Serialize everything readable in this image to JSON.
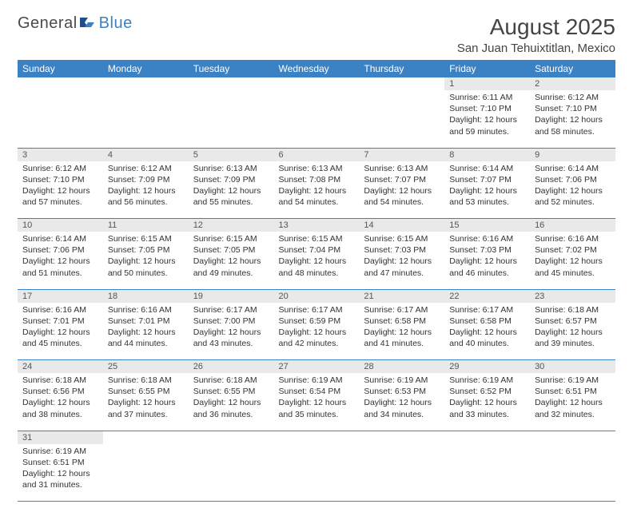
{
  "logo": {
    "general": "General",
    "blue": "Blue"
  },
  "title": {
    "month": "August 2025",
    "location": "San Juan Tehuixtitlan, Mexico"
  },
  "colors": {
    "accent": "#3b82c4",
    "daynum_bg": "#e9e9e9",
    "text": "#333333",
    "bg": "#ffffff"
  },
  "dayHeaders": [
    "Sunday",
    "Monday",
    "Tuesday",
    "Wednesday",
    "Thursday",
    "Friday",
    "Saturday"
  ],
  "weeks": [
    [
      null,
      null,
      null,
      null,
      null,
      {
        "n": "1",
        "sunrise": "Sunrise: 6:11 AM",
        "sunset": "Sunset: 7:10 PM",
        "daylight": "Daylight: 12 hours and 59 minutes."
      },
      {
        "n": "2",
        "sunrise": "Sunrise: 6:12 AM",
        "sunset": "Sunset: 7:10 PM",
        "daylight": "Daylight: 12 hours and 58 minutes."
      }
    ],
    [
      {
        "n": "3",
        "sunrise": "Sunrise: 6:12 AM",
        "sunset": "Sunset: 7:10 PM",
        "daylight": "Daylight: 12 hours and 57 minutes."
      },
      {
        "n": "4",
        "sunrise": "Sunrise: 6:12 AM",
        "sunset": "Sunset: 7:09 PM",
        "daylight": "Daylight: 12 hours and 56 minutes."
      },
      {
        "n": "5",
        "sunrise": "Sunrise: 6:13 AM",
        "sunset": "Sunset: 7:09 PM",
        "daylight": "Daylight: 12 hours and 55 minutes."
      },
      {
        "n": "6",
        "sunrise": "Sunrise: 6:13 AM",
        "sunset": "Sunset: 7:08 PM",
        "daylight": "Daylight: 12 hours and 54 minutes."
      },
      {
        "n": "7",
        "sunrise": "Sunrise: 6:13 AM",
        "sunset": "Sunset: 7:07 PM",
        "daylight": "Daylight: 12 hours and 54 minutes."
      },
      {
        "n": "8",
        "sunrise": "Sunrise: 6:14 AM",
        "sunset": "Sunset: 7:07 PM",
        "daylight": "Daylight: 12 hours and 53 minutes."
      },
      {
        "n": "9",
        "sunrise": "Sunrise: 6:14 AM",
        "sunset": "Sunset: 7:06 PM",
        "daylight": "Daylight: 12 hours and 52 minutes."
      }
    ],
    [
      {
        "n": "10",
        "sunrise": "Sunrise: 6:14 AM",
        "sunset": "Sunset: 7:06 PM",
        "daylight": "Daylight: 12 hours and 51 minutes."
      },
      {
        "n": "11",
        "sunrise": "Sunrise: 6:15 AM",
        "sunset": "Sunset: 7:05 PM",
        "daylight": "Daylight: 12 hours and 50 minutes."
      },
      {
        "n": "12",
        "sunrise": "Sunrise: 6:15 AM",
        "sunset": "Sunset: 7:05 PM",
        "daylight": "Daylight: 12 hours and 49 minutes."
      },
      {
        "n": "13",
        "sunrise": "Sunrise: 6:15 AM",
        "sunset": "Sunset: 7:04 PM",
        "daylight": "Daylight: 12 hours and 48 minutes."
      },
      {
        "n": "14",
        "sunrise": "Sunrise: 6:15 AM",
        "sunset": "Sunset: 7:03 PM",
        "daylight": "Daylight: 12 hours and 47 minutes."
      },
      {
        "n": "15",
        "sunrise": "Sunrise: 6:16 AM",
        "sunset": "Sunset: 7:03 PM",
        "daylight": "Daylight: 12 hours and 46 minutes."
      },
      {
        "n": "16",
        "sunrise": "Sunrise: 6:16 AM",
        "sunset": "Sunset: 7:02 PM",
        "daylight": "Daylight: 12 hours and 45 minutes."
      }
    ],
    [
      {
        "n": "17",
        "sunrise": "Sunrise: 6:16 AM",
        "sunset": "Sunset: 7:01 PM",
        "daylight": "Daylight: 12 hours and 45 minutes."
      },
      {
        "n": "18",
        "sunrise": "Sunrise: 6:16 AM",
        "sunset": "Sunset: 7:01 PM",
        "daylight": "Daylight: 12 hours and 44 minutes."
      },
      {
        "n": "19",
        "sunrise": "Sunrise: 6:17 AM",
        "sunset": "Sunset: 7:00 PM",
        "daylight": "Daylight: 12 hours and 43 minutes."
      },
      {
        "n": "20",
        "sunrise": "Sunrise: 6:17 AM",
        "sunset": "Sunset: 6:59 PM",
        "daylight": "Daylight: 12 hours and 42 minutes."
      },
      {
        "n": "21",
        "sunrise": "Sunrise: 6:17 AM",
        "sunset": "Sunset: 6:58 PM",
        "daylight": "Daylight: 12 hours and 41 minutes."
      },
      {
        "n": "22",
        "sunrise": "Sunrise: 6:17 AM",
        "sunset": "Sunset: 6:58 PM",
        "daylight": "Daylight: 12 hours and 40 minutes."
      },
      {
        "n": "23",
        "sunrise": "Sunrise: 6:18 AM",
        "sunset": "Sunset: 6:57 PM",
        "daylight": "Daylight: 12 hours and 39 minutes."
      }
    ],
    [
      {
        "n": "24",
        "sunrise": "Sunrise: 6:18 AM",
        "sunset": "Sunset: 6:56 PM",
        "daylight": "Daylight: 12 hours and 38 minutes."
      },
      {
        "n": "25",
        "sunrise": "Sunrise: 6:18 AM",
        "sunset": "Sunset: 6:55 PM",
        "daylight": "Daylight: 12 hours and 37 minutes."
      },
      {
        "n": "26",
        "sunrise": "Sunrise: 6:18 AM",
        "sunset": "Sunset: 6:55 PM",
        "daylight": "Daylight: 12 hours and 36 minutes."
      },
      {
        "n": "27",
        "sunrise": "Sunrise: 6:19 AM",
        "sunset": "Sunset: 6:54 PM",
        "daylight": "Daylight: 12 hours and 35 minutes."
      },
      {
        "n": "28",
        "sunrise": "Sunrise: 6:19 AM",
        "sunset": "Sunset: 6:53 PM",
        "daylight": "Daylight: 12 hours and 34 minutes."
      },
      {
        "n": "29",
        "sunrise": "Sunrise: 6:19 AM",
        "sunset": "Sunset: 6:52 PM",
        "daylight": "Daylight: 12 hours and 33 minutes."
      },
      {
        "n": "30",
        "sunrise": "Sunrise: 6:19 AM",
        "sunset": "Sunset: 6:51 PM",
        "daylight": "Daylight: 12 hours and 32 minutes."
      }
    ],
    [
      {
        "n": "31",
        "sunrise": "Sunrise: 6:19 AM",
        "sunset": "Sunset: 6:51 PM",
        "daylight": "Daylight: 12 hours and 31 minutes."
      },
      null,
      null,
      null,
      null,
      null,
      null
    ]
  ]
}
